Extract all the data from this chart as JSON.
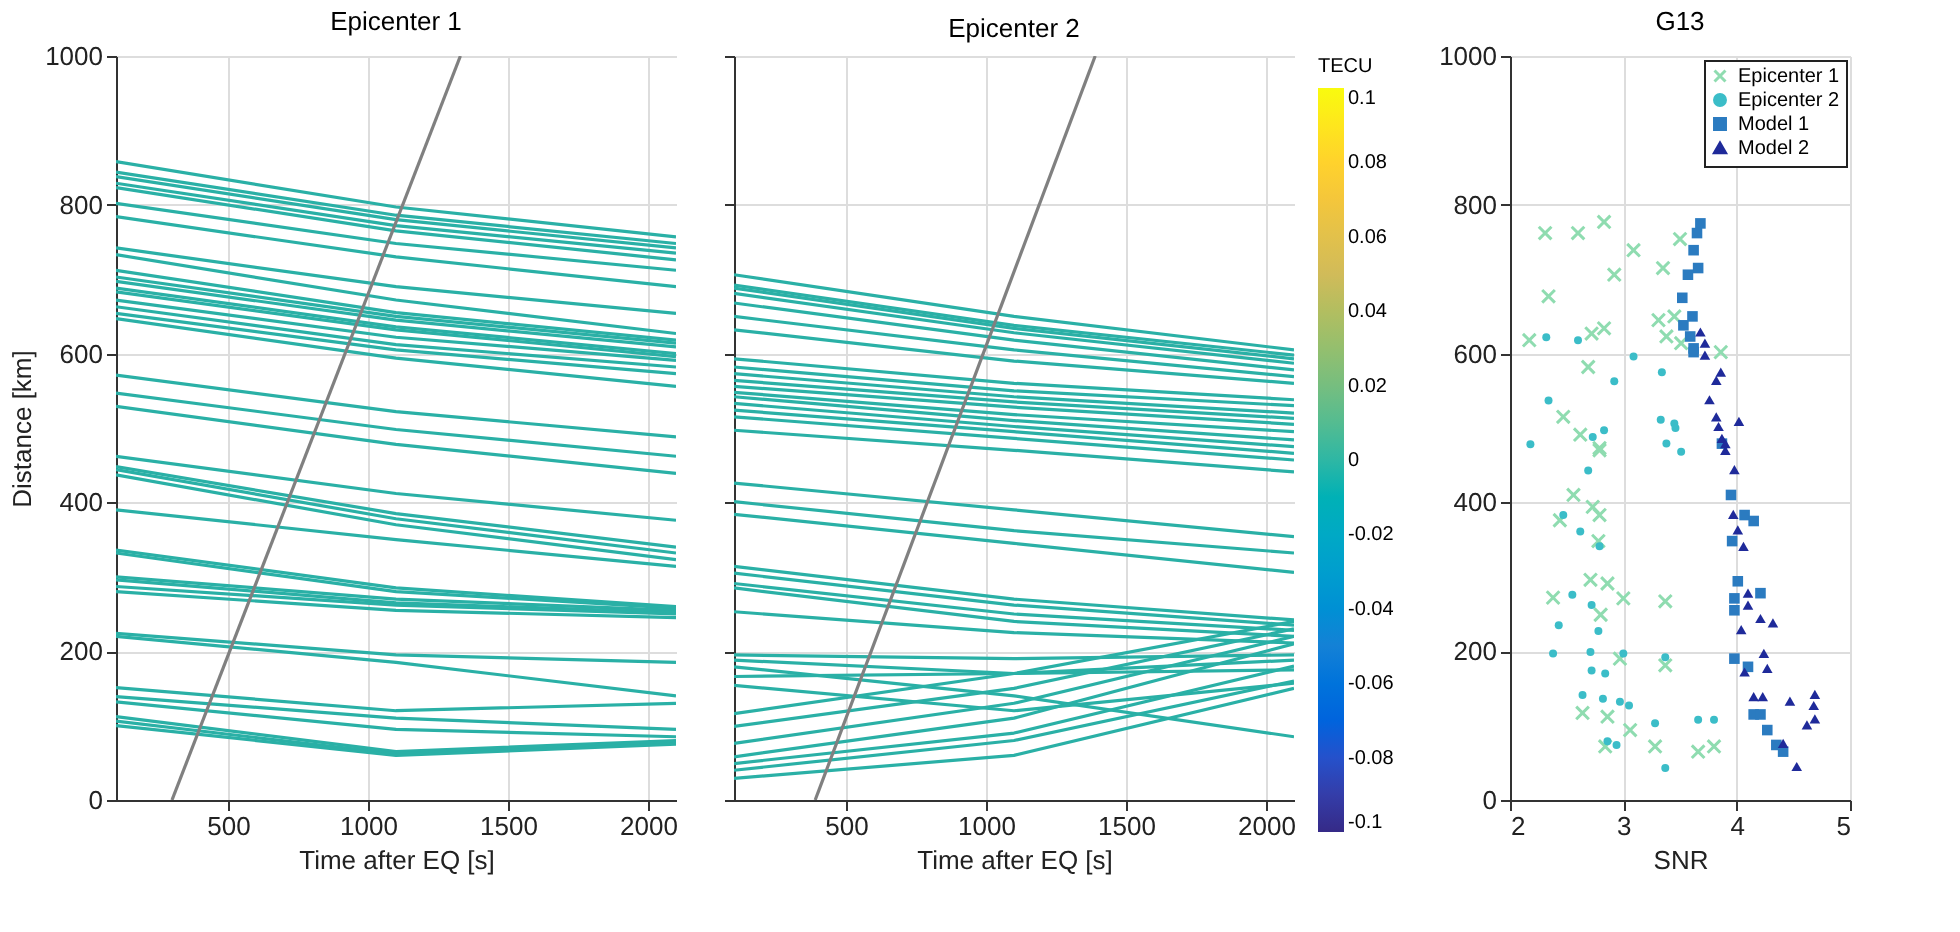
{
  "chart_data": [
    {
      "type": "line",
      "title": "Epicenter 1",
      "xlabel": "Time after EQ [s]",
      "ylabel": "Distance [km]",
      "xlim": [
        100,
        2100
      ],
      "xticks": [
        500,
        1000,
        1500,
        2000
      ],
      "ylim": [
        0,
        1000
      ],
      "yticks": [
        0,
        200,
        400,
        600,
        800,
        1000
      ],
      "grid": true,
      "x": [
        100,
        1100,
        2100
      ],
      "series": [
        {
          "color": "#2ab0a6",
          "values": [
            858,
            797,
            757
          ]
        },
        {
          "color": "#2ab0a6",
          "values": [
            844,
            786,
            748
          ]
        },
        {
          "color": "#2ab0a6",
          "values": [
            838,
            780,
            742
          ]
        },
        {
          "color": "#2ab0a6",
          "values": [
            829,
            772,
            735
          ]
        },
        {
          "color": "#2ab0a6",
          "values": [
            823,
            765,
            726
          ]
        },
        {
          "color": "#2ab0a6",
          "values": [
            802,
            748,
            712
          ]
        },
        {
          "color": "#2ab0a6",
          "values": [
            784,
            730,
            690
          ]
        },
        {
          "color": "#2ab0a6",
          "values": [
            742,
            690,
            654
          ]
        },
        {
          "color": "#2ab0a6",
          "values": [
            733,
            672,
            627
          ]
        },
        {
          "color": "#2ab0a6",
          "values": [
            712,
            655,
            618
          ]
        },
        {
          "color": "#2ab0a6",
          "values": [
            703,
            650,
            614
          ]
        },
        {
          "color": "#2ab0a6",
          "values": [
            697,
            645,
            609
          ]
        },
        {
          "color": "#2ab0a6",
          "values": [
            688,
            636,
            600
          ]
        },
        {
          "color": "#2ab0a6",
          "values": [
            683,
            632,
            596
          ]
        },
        {
          "color": "#2ab0a6",
          "values": [
            672,
            622,
            591
          ]
        },
        {
          "color": "#2ab0a6",
          "values": [
            663,
            612,
            582
          ]
        },
        {
          "color": "#2ab0a6",
          "values": [
            654,
            605,
            573
          ]
        },
        {
          "color": "#2ab0a6",
          "values": [
            647,
            594,
            556
          ]
        },
        {
          "color": "#2ab0a6",
          "values": [
            571,
            522,
            488
          ]
        },
        {
          "color": "#2ab0a6",
          "values": [
            547,
            498,
            462
          ]
        },
        {
          "color": "#2ab0a6",
          "values": [
            529,
            478,
            439
          ]
        },
        {
          "color": "#2ab0a6",
          "values": [
            462,
            412,
            376
          ]
        },
        {
          "color": "#2ab0a6",
          "values": [
            448,
            385,
            340
          ]
        },
        {
          "color": "#2ab0a6",
          "values": [
            444,
            378,
            332
          ]
        },
        {
          "color": "#2ab0a6",
          "values": [
            437,
            370,
            323
          ]
        },
        {
          "color": "#2ab0a6",
          "values": [
            390,
            350,
            314
          ]
        },
        {
          "color": "#2ab0a6",
          "values": [
            336,
            285,
            260
          ]
        },
        {
          "color": "#2ab0a6",
          "values": [
            332,
            280,
            258
          ]
        },
        {
          "color": "#2ab0a6",
          "values": [
            300,
            270,
            255
          ]
        },
        {
          "color": "#2ab0a6",
          "values": [
            296,
            265,
            252
          ]
        },
        {
          "color": "#2ab0a6",
          "values": [
            287,
            262,
            250
          ]
        },
        {
          "color": "#2ab0a6",
          "values": [
            280,
            255,
            245
          ]
        },
        {
          "color": "#2ab0a6",
          "values": [
            224,
            195,
            185
          ]
        },
        {
          "color": "#2ab0a6",
          "values": [
            220,
            185,
            140
          ]
        },
        {
          "color": "#2ab0a6",
          "values": [
            151,
            120,
            130
          ]
        },
        {
          "color": "#2ab0a6",
          "values": [
            139,
            110,
            95
          ]
        },
        {
          "color": "#2ab0a6",
          "values": [
            132,
            95,
            85
          ]
        },
        {
          "color": "#2ab0a6",
          "values": [
            112,
            65,
            80
          ]
        },
        {
          "color": "#2ab0a6",
          "values": [
            106,
            62,
            78
          ]
        },
        {
          "color": "#2ab0a6",
          "values": [
            100,
            60,
            75
          ]
        },
        {
          "color": "#808080",
          "x": [
            300,
            1330
          ],
          "values": [
            0,
            1000
          ]
        }
      ]
    },
    {
      "type": "line",
      "title": "Epicenter 2",
      "xlabel": "Time after EQ [s]",
      "xlim": [
        100,
        2100
      ],
      "xticks": [
        500,
        1000,
        1500,
        2000
      ],
      "ylim": [
        0,
        1000
      ],
      "yticks": [
        0,
        200,
        400,
        600,
        800,
        1000
      ],
      "tick_labels": "x",
      "grid": true,
      "x": [
        100,
        1100,
        2100
      ],
      "clabel": "TECU",
      "clim": [
        -0.1,
        0.1
      ],
      "cticks": [
        -0.1,
        -0.08,
        -0.06,
        -0.04,
        -0.02,
        0,
        0.02,
        0.04,
        0.06,
        0.08,
        0.1
      ],
      "series": [
        {
          "color": "#2ab0a6",
          "values": [
            706,
            650,
            605
          ]
        },
        {
          "color": "#2ab0a6",
          "values": [
            692,
            638,
            598
          ]
        },
        {
          "color": "#2ab0a6",
          "values": [
            688,
            634,
            593
          ]
        },
        {
          "color": "#2ab0a6",
          "values": [
            681,
            628,
            587
          ]
        },
        {
          "color": "#2ab0a6",
          "values": [
            668,
            618,
            578
          ]
        },
        {
          "color": "#2ab0a6",
          "values": [
            650,
            605,
            569
          ]
        },
        {
          "color": "#2ab0a6",
          "values": [
            632,
            590,
            560
          ]
        },
        {
          "color": "#2ab0a6",
          "values": [
            593,
            560,
            538
          ]
        },
        {
          "color": "#2ab0a6",
          "values": [
            582,
            550,
            530
          ]
        },
        {
          "color": "#2ab0a6",
          "values": [
            573,
            542,
            520
          ]
        },
        {
          "color": "#2ab0a6",
          "values": [
            564,
            535,
            513
          ]
        },
        {
          "color": "#2ab0a6",
          "values": [
            556,
            528,
            505
          ]
        },
        {
          "color": "#2ab0a6",
          "values": [
            548,
            518,
            495
          ]
        },
        {
          "color": "#2ab0a6",
          "values": [
            542,
            510,
            484
          ]
        },
        {
          "color": "#2ab0a6",
          "values": [
            533,
            502,
            475
          ]
        },
        {
          "color": "#2ab0a6",
          "values": [
            524,
            495,
            466
          ]
        },
        {
          "color": "#2ab0a6",
          "values": [
            515,
            486,
            457
          ]
        },
        {
          "color": "#2ab0a6",
          "values": [
            497,
            470,
            441
          ]
        },
        {
          "color": "#2ab0a6",
          "values": [
            426,
            390,
            354
          ]
        },
        {
          "color": "#2ab0a6",
          "values": [
            401,
            362,
            332
          ]
        },
        {
          "color": "#2ab0a6",
          "values": [
            384,
            345,
            306
          ]
        },
        {
          "color": "#2ab0a6",
          "values": [
            314,
            270,
            242
          ]
        },
        {
          "color": "#2ab0a6",
          "values": [
            305,
            262,
            235
          ]
        },
        {
          "color": "#2ab0a6",
          "values": [
            291,
            250,
            228
          ]
        },
        {
          "color": "#2ab0a6",
          "values": [
            285,
            240,
            220
          ]
        },
        {
          "color": "#2ab0a6",
          "values": [
            253,
            225,
            211
          ]
        },
        {
          "color": "#2ab0a6",
          "values": [
            195,
            190,
            195
          ]
        },
        {
          "color": "#2ab0a6",
          "values": [
            188,
            170,
            175
          ]
        },
        {
          "color": "#2ab0a6",
          "values": [
            179,
            140,
            85
          ]
        },
        {
          "color": "#2ab0a6",
          "values": [
            166,
            170,
            188
          ]
        },
        {
          "color": "#2ab0a6",
          "values": [
            154,
            120,
            157
          ]
        },
        {
          "color": "#2ab0a6",
          "values": [
            116,
            170,
            240
          ]
        },
        {
          "color": "#2ab0a6",
          "values": [
            99,
            150,
            230
          ]
        },
        {
          "color": "#2ab0a6",
          "values": [
            76,
            130,
            220
          ]
        },
        {
          "color": "#2ab0a6",
          "values": [
            58,
            110,
            210
          ]
        },
        {
          "color": "#2ab0a6",
          "values": [
            49,
            90,
            180
          ]
        },
        {
          "color": "#2ab0a6",
          "values": [
            40,
            80,
            160
          ]
        },
        {
          "color": "#2ab0a6",
          "values": [
            29,
            60,
            150
          ]
        },
        {
          "color": "#808080",
          "x": [
            390,
            1390
          ],
          "values": [
            0,
            1000
          ]
        }
      ]
    },
    {
      "type": "scatter",
      "title": "G13",
      "xlabel": "SNR",
      "xlim": [
        2,
        5
      ],
      "xticks": [
        2,
        3,
        4,
        5
      ],
      "ylim": [
        0,
        1000
      ],
      "yticks": [
        0,
        200,
        400,
        600,
        800,
        1000
      ],
      "grid": true,
      "legend": "top right",
      "series": [
        {
          "name": "Epicenter 1",
          "color": "#8fdcb0",
          "marker": "cross",
          "x": [
            2.31,
            2.6,
            2.83,
            3.09,
            2.92,
            2.34,
            3.5,
            3.35,
            3.31,
            3.45,
            3.38,
            3.51,
            2.83,
            2.72,
            2.17,
            2.69,
            3.86,
            2.47,
            2.62,
            2.79,
            2.79,
            2.56,
            2.73,
            2.44,
            2.79,
            2.78,
            2.71,
            2.86,
            2.38,
            3.0,
            2.8,
            3.37,
            2.97,
            3.37,
            2.64,
            2.86,
            3.06,
            2.84,
            3.28,
            3.66,
            3.8
          ],
          "values": [
            762,
            762,
            777,
            739,
            706,
            677,
            754,
            715,
            645,
            650,
            623,
            614,
            634,
            627,
            618,
            582,
            602,
            515,
            491,
            473,
            470,
            410,
            394,
            376,
            383,
            348,
            296,
            291,
            272,
            271,
            249,
            267,
            190,
            181,
            117,
            112,
            94,
            72,
            72,
            65,
            72
          ]
        },
        {
          "name": "Epicenter 2",
          "color": "#3bbdc8",
          "marker": "circle",
          "x": [
            2.32,
            2.6,
            3.09,
            2.92,
            2.34,
            3.34,
            3.33,
            3.45,
            3.46,
            2.83,
            2.73,
            2.18,
            3.38,
            3.51,
            2.69,
            2.47,
            2.62,
            2.79,
            2.55,
            2.72,
            2.43,
            2.78,
            2.38,
            2.71,
            3.0,
            3.37,
            2.72,
            2.84,
            2.64,
            2.82,
            2.97,
            3.05,
            3.28,
            3.66,
            3.8,
            2.86,
            2.94,
            3.37
          ],
          "values": [
            622,
            618,
            596,
            563,
            537,
            575,
            511,
            506,
            500,
            497,
            488,
            478,
            479,
            468,
            443,
            383,
            361,
            341,
            276,
            262,
            235,
            227,
            197,
            199,
            197,
            192,
            174,
            170,
            141,
            136,
            132,
            127,
            103,
            108,
            108,
            79,
            74,
            43
          ]
        },
        {
          "name": "Model 1",
          "color": "#2b7bc0",
          "marker": "square",
          "x": [
            3.68,
            3.65,
            3.62,
            3.66,
            3.57,
            3.52,
            3.61,
            3.53,
            3.59,
            3.62,
            3.62,
            3.87,
            3.95,
            4.07,
            4.15,
            3.96,
            4.01,
            3.98,
            4.21,
            3.98,
            3.98,
            4.1,
            4.15,
            4.21,
            4.27,
            4.35,
            4.41
          ],
          "values": [
            775,
            762,
            739,
            715,
            706,
            675,
            650,
            638,
            623,
            607,
            602,
            479,
            410,
            383,
            375,
            348,
            294,
            271,
            278,
            255,
            190,
            179,
            115,
            115,
            94,
            74,
            65
          ]
        },
        {
          "name": "Model 2",
          "color": "#1f2a9a",
          "marker": "triangle",
          "x": [
            3.68,
            3.72,
            3.72,
            3.86,
            3.82,
            3.76,
            3.82,
            3.84,
            4.02,
            3.87,
            3.9,
            3.9,
            3.98,
            3.97,
            4.01,
            4.06,
            4.1,
            4.1,
            4.21,
            4.32,
            4.04,
            4.24,
            4.27,
            4.07,
            4.15,
            4.23,
            4.47,
            4.69,
            4.68,
            4.69,
            4.62,
            4.41,
            4.53
          ],
          "values": [
            629,
            614,
            598,
            575,
            564,
            538,
            515,
            502,
            509,
            486,
            479,
            470,
            444,
            384,
            363,
            341,
            278,
            262,
            244,
            238,
            229,
            197,
            177,
            172,
            139,
            139,
            133,
            142,
            127,
            109,
            101,
            76,
            45
          ]
        }
      ]
    }
  ]
}
